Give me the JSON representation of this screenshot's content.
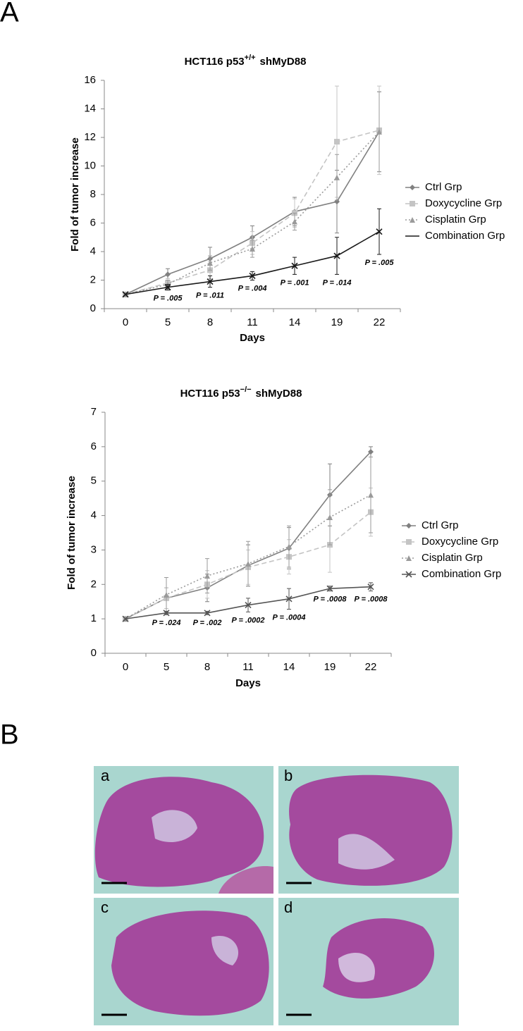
{
  "panel_labels": [
    "A",
    "B"
  ],
  "chart_data": [
    {
      "type": "line",
      "title": {
        "main": "HCT116 p53",
        "sup": "+/+",
        "tail": "shMyD88"
      },
      "x_label": "Days",
      "y_label": "Fold of tumor increase",
      "categories": [
        "0",
        "5",
        "8",
        "11",
        "14",
        "19",
        "22"
      ],
      "ylim": [
        0,
        16
      ],
      "yticks": [
        0,
        2,
        4,
        6,
        8,
        10,
        12,
        14,
        16
      ],
      "series": [
        {
          "name": "Ctrl Grp",
          "color": "#808080",
          "dash": "solid",
          "marker": "diamond",
          "values": [
            1,
            2.4,
            3.5,
            5.0,
            6.8,
            7.5,
            12.4
          ],
          "errors": [
            0,
            0.4,
            0.8,
            0.8,
            1.0,
            2.2,
            2.8
          ]
        },
        {
          "name": "Doxycycline  Grp",
          "color": "#c4c4c4",
          "dash": "dashed",
          "marker": "square",
          "values": [
            1,
            1.8,
            2.7,
            4.6,
            6.7,
            11.7,
            12.5
          ],
          "errors": [
            0,
            0.3,
            0.6,
            0.8,
            1.0,
            3.9,
            3.1
          ]
        },
        {
          "name": "Cisplatin Grp",
          "color": "#9a9a9a",
          "dash": "dotted",
          "marker": "triangle",
          "values": [
            1,
            1.7,
            3.2,
            4.2,
            6.1,
            9.2,
            12.4
          ],
          "errors": [
            0,
            0.3,
            0.5,
            0.6,
            0.6,
            1.6,
            2.8
          ]
        },
        {
          "name": "Combination Grp",
          "color": "#1a1a1a",
          "dash": "solid",
          "marker": "x",
          "values": [
            1,
            1.5,
            1.9,
            2.3,
            3.0,
            3.7,
            5.4
          ],
          "errors": [
            0,
            0.2,
            0.4,
            0.3,
            0.6,
            1.3,
            1.6
          ]
        }
      ],
      "p_values": [
        null,
        "P = .005",
        "P = .011",
        "P = .004",
        "P = .001",
        "P = .014",
        "P = .005"
      ]
    },
    {
      "type": "line",
      "title": {
        "main": "HCT116 p53",
        "sup": "−/−",
        "tail": "shMyD88"
      },
      "x_label": "Days",
      "y_label": "Fold of tumor increase",
      "categories": [
        "0",
        "5",
        "8",
        "11",
        "14",
        "19",
        "22"
      ],
      "ylim": [
        0,
        7
      ],
      "yticks": [
        0,
        1,
        2,
        3,
        4,
        5,
        6,
        7
      ],
      "series": [
        {
          "name": "Ctrl Grp",
          "color": "#808080",
          "dash": "solid",
          "marker": "diamond",
          "values": [
            1,
            1.6,
            1.9,
            2.55,
            3.05,
            4.6,
            5.85
          ],
          "errors": [
            0,
            0.3,
            0.4,
            0.6,
            0.6,
            0.9,
            0.15
          ]
        },
        {
          "name": "Doxycycline  Grp",
          "color": "#c4c4c4",
          "dash": "dashed",
          "marker": "square",
          "values": [
            1,
            1.6,
            2.0,
            2.5,
            2.8,
            3.15,
            4.1
          ],
          "errors": [
            0,
            0.3,
            0.4,
            0.5,
            0.5,
            0.8,
            0.7
          ]
        },
        {
          "name": "Cisplatin Grp",
          "color": "#9a9a9a",
          "dash": "dotted",
          "marker": "triangle",
          "values": [
            1,
            1.7,
            2.25,
            2.6,
            3.1,
            3.95,
            4.6
          ],
          "errors": [
            0,
            0.5,
            0.5,
            0.65,
            0.6,
            0.8,
            1.1
          ]
        },
        {
          "name": "Combination Grp",
          "color": "#555555",
          "dash": "solid",
          "marker": "x",
          "values": [
            1,
            1.17,
            1.17,
            1.4,
            1.58,
            1.88,
            1.93
          ],
          "errors": [
            0,
            0.05,
            0.05,
            0.2,
            0.3,
            0.07,
            0.12
          ]
        }
      ],
      "p_values": [
        null,
        "P = .024",
        "P = .002",
        "P = .0002",
        "P = .0004",
        "P = .0008",
        "P = .0008"
      ]
    }
  ],
  "histology": {
    "panels": [
      "a",
      "b",
      "c",
      "d"
    ]
  }
}
